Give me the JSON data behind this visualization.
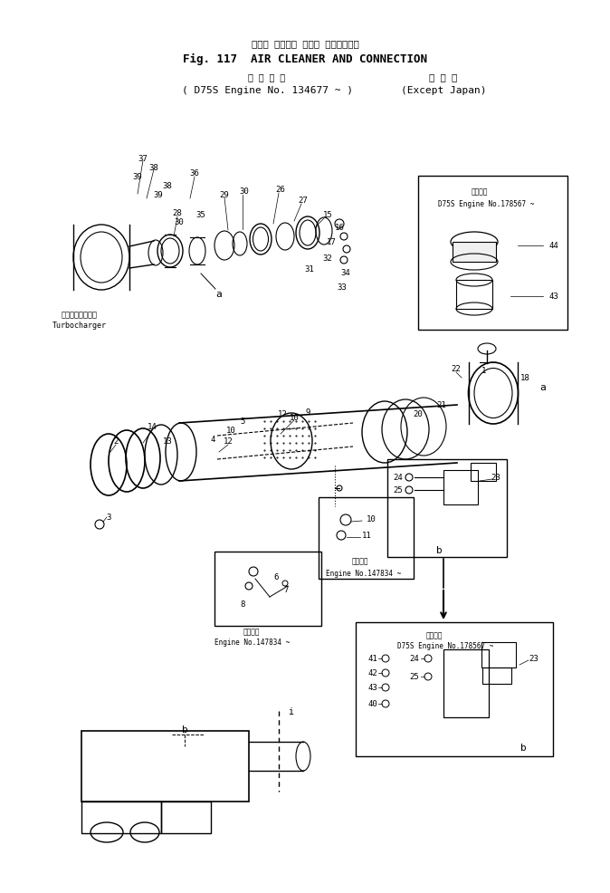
{
  "title_japanese": "エアー クリーナ および コネクション",
  "title_english": "Fig. 117  AIR CLEANER AND CONNECTION",
  "subtitle_japanese": "適 用 号 機",
  "subtitle_engine": "D75S Engine No. 134677 ~",
  "subtitle_region_jp": "海 外 用",
  "subtitle_region_en": "(Except Japan)",
  "bg_color": "#ffffff",
  "line_color": "#000000",
  "text_color": "#000000",
  "fig_width": 6.74,
  "fig_height": 9.87
}
